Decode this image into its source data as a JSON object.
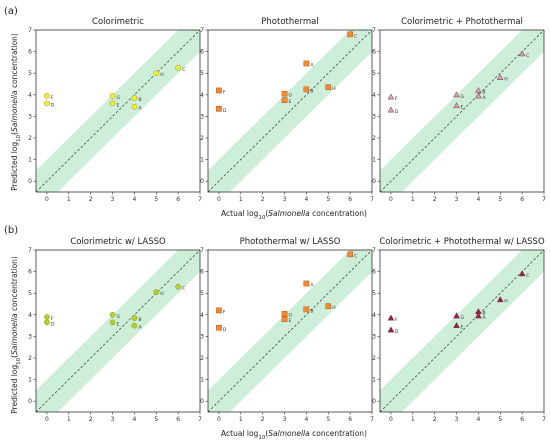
{
  "row_labels": [
    "(a)",
    "(b)"
  ],
  "axis_labels": {
    "ylabel_prefix": "Predicted log",
    "ylabel_sub": "10",
    "ylabel_paren": "(",
    "ylabel_italic": "Salmonella",
    "ylabel_suffix": " concentration)",
    "xlabel_prefix": "Actual log",
    "xlabel_sub": "10",
    "xlabel_paren": "(",
    "xlabel_italic": "Salmonella",
    "xlabel_suffix": " concentration)"
  },
  "colors": {
    "band": "#cdeed8",
    "colorimetric": "#f0ef3a",
    "colorimetric_lasso": "#b3d32c",
    "photothermal": "#f08a33",
    "combined": "#d7a3b4",
    "combined_lasso": "#9b2148"
  },
  "chart_data": [
    {
      "type": "scatter",
      "row": "(a)",
      "title": "Colorimetric",
      "marker": "circle",
      "color_key": "colorimetric",
      "xlim": [
        -0.5,
        7
      ],
      "ylim": [
        -0.5,
        7
      ],
      "xticks": [
        0,
        1,
        2,
        3,
        4,
        5,
        6,
        7
      ],
      "yticks": [
        0,
        1,
        2,
        3,
        4,
        5,
        6,
        7
      ],
      "reference_line": "y = x",
      "band_halfwidth": 1,
      "points": [
        {
          "label": "F",
          "x": 0,
          "y": 3.95
        },
        {
          "label": "D",
          "x": 0,
          "y": 3.6
        },
        {
          "label": "G",
          "x": 3,
          "y": 3.95
        },
        {
          "label": "E",
          "x": 3,
          "y": 3.6
        },
        {
          "label": "B",
          "x": 4,
          "y": 3.85
        },
        {
          "label": "A",
          "x": 4,
          "y": 3.45
        },
        {
          "label": "H",
          "x": 5,
          "y": 5.0
        },
        {
          "label": "C",
          "x": 6,
          "y": 5.25
        }
      ]
    },
    {
      "type": "scatter",
      "row": "(a)",
      "title": "Photothermal",
      "marker": "square",
      "color_key": "photothermal",
      "xlim": [
        -0.5,
        7
      ],
      "ylim": [
        -0.5,
        7
      ],
      "xticks": [
        0,
        1,
        2,
        3,
        4,
        5,
        6,
        7
      ],
      "yticks": [
        0,
        1,
        2,
        3,
        4,
        5,
        6,
        7
      ],
      "reference_line": "y = x",
      "band_halfwidth": 1,
      "points": [
        {
          "label": "F",
          "x": 0,
          "y": 4.2
        },
        {
          "label": "D",
          "x": 0,
          "y": 3.35
        },
        {
          "label": "G",
          "x": 3,
          "y": 4.05
        },
        {
          "label": "E",
          "x": 3,
          "y": 3.75
        },
        {
          "label": "B",
          "x": 4,
          "y": 4.25
        },
        {
          "label": "A",
          "x": 4,
          "y": 5.45
        },
        {
          "label": "H",
          "x": 5,
          "y": 4.35
        },
        {
          "label": "C",
          "x": 6,
          "y": 6.8
        }
      ]
    },
    {
      "type": "scatter",
      "row": "(a)",
      "title": "Colorimetric + Photothermal",
      "marker": "triangle",
      "color_key": "combined",
      "xlim": [
        -0.5,
        7
      ],
      "ylim": [
        -0.5,
        7
      ],
      "xticks": [
        0,
        1,
        2,
        3,
        4,
        5,
        6,
        7
      ],
      "yticks": [
        0,
        1,
        2,
        3,
        4,
        5,
        6,
        7
      ],
      "reference_line": "y = x",
      "band_halfwidth": 1,
      "points": [
        {
          "label": "F",
          "x": 0,
          "y": 3.9
        },
        {
          "label": "D",
          "x": 0,
          "y": 3.3
        },
        {
          "label": "G",
          "x": 3,
          "y": 4.0
        },
        {
          "label": "E",
          "x": 3,
          "y": 3.5
        },
        {
          "label": "B",
          "x": 4,
          "y": 4.2
        },
        {
          "label": "A",
          "x": 4,
          "y": 3.95
        },
        {
          "label": "H",
          "x": 5,
          "y": 4.8
        },
        {
          "label": "C",
          "x": 6,
          "y": 5.9
        }
      ]
    },
    {
      "type": "scatter",
      "row": "(b)",
      "title": "Colorimetric w/ LASSO",
      "marker": "circle",
      "color_key": "colorimetric_lasso",
      "xlim": [
        -0.5,
        7
      ],
      "ylim": [
        -0.5,
        7
      ],
      "xticks": [
        0,
        1,
        2,
        3,
        4,
        5,
        6,
        7
      ],
      "yticks": [
        0,
        1,
        2,
        3,
        4,
        5,
        6,
        7
      ],
      "reference_line": "y = x",
      "band_halfwidth": 1,
      "points": [
        {
          "label": "F",
          "x": 0,
          "y": 3.9
        },
        {
          "label": "D",
          "x": 0,
          "y": 3.65
        },
        {
          "label": "G",
          "x": 3,
          "y": 4.0
        },
        {
          "label": "E",
          "x": 3,
          "y": 3.65
        },
        {
          "label": "B",
          "x": 4,
          "y": 3.85
        },
        {
          "label": "A",
          "x": 4,
          "y": 3.5
        },
        {
          "label": "H",
          "x": 5,
          "y": 5.05
        },
        {
          "label": "C",
          "x": 6,
          "y": 5.3
        }
      ]
    },
    {
      "type": "scatter",
      "row": "(b)",
      "title": "Photothermal w/ LASSO",
      "marker": "square",
      "color_key": "photothermal",
      "xlim": [
        -0.5,
        7
      ],
      "ylim": [
        -0.5,
        7
      ],
      "xticks": [
        0,
        1,
        2,
        3,
        4,
        5,
        6,
        7
      ],
      "yticks": [
        0,
        1,
        2,
        3,
        4,
        5,
        6,
        7
      ],
      "reference_line": "y = x",
      "band_halfwidth": 1,
      "points": [
        {
          "label": "F",
          "x": 0,
          "y": 4.2
        },
        {
          "label": "D",
          "x": 0,
          "y": 3.4
        },
        {
          "label": "G",
          "x": 3,
          "y": 4.05
        },
        {
          "label": "E",
          "x": 3,
          "y": 3.8
        },
        {
          "label": "B",
          "x": 4,
          "y": 4.25
        },
        {
          "label": "A",
          "x": 4,
          "y": 5.45
        },
        {
          "label": "H",
          "x": 5,
          "y": 4.4
        },
        {
          "label": "C",
          "x": 6,
          "y": 6.8
        }
      ]
    },
    {
      "type": "scatter",
      "row": "(b)",
      "title": "Colorimetric + Photothermal w/ LASSO",
      "marker": "triangle",
      "color_key": "combined_lasso",
      "xlim": [
        -0.5,
        7
      ],
      "ylim": [
        -0.5,
        7
      ],
      "xticks": [
        0,
        1,
        2,
        3,
        4,
        5,
        6,
        7
      ],
      "yticks": [
        0,
        1,
        2,
        3,
        4,
        5,
        6,
        7
      ],
      "reference_line": "y = x",
      "band_halfwidth": 1,
      "points": [
        {
          "label": "F",
          "x": 0,
          "y": 3.85
        },
        {
          "label": "D",
          "x": 0,
          "y": 3.3
        },
        {
          "label": "G",
          "x": 3,
          "y": 3.95
        },
        {
          "label": "E",
          "x": 3,
          "y": 3.5
        },
        {
          "label": "B",
          "x": 4,
          "y": 4.15
        },
        {
          "label": "A",
          "x": 4,
          "y": 3.95
        },
        {
          "label": "H",
          "x": 5,
          "y": 4.7
        },
        {
          "label": "C",
          "x": 6,
          "y": 5.9
        }
      ]
    }
  ]
}
